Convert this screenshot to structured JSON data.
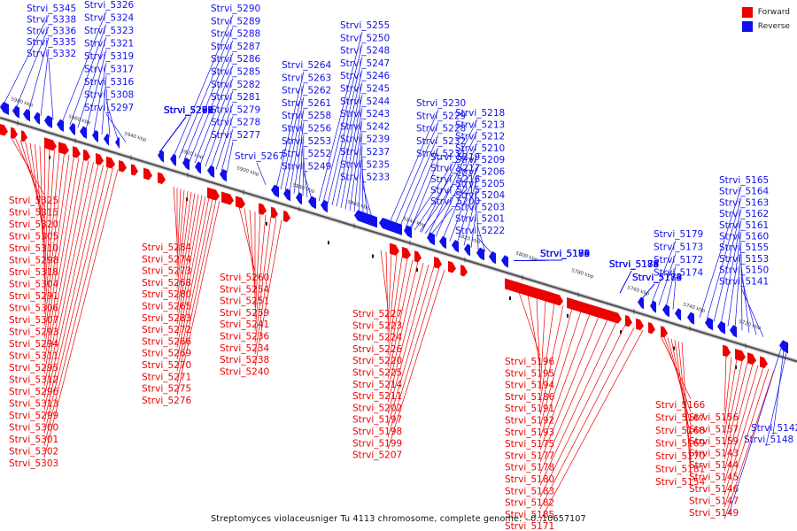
{
  "colors": {
    "forward": "#ee0000",
    "reverse": "#1010ee",
    "axis": "#555555"
  },
  "legend": [
    {
      "label": "Forward",
      "color": "#ee0000"
    },
    {
      "label": "Reverse",
      "color": "#1010ee"
    }
  ],
  "caption": "Streptomyces violaceusniger Tu 4113 chromosome, complete genome. - 0..10657107",
  "ticks": [
    "5980 kbp",
    "5960 kbp",
    "5940 kbp",
    "5920 kbp",
    "5900 kbp",
    "5880 kbp",
    "5860 kbp",
    "5840 kbp",
    "5820 kbp",
    "5800 kbp",
    "5780 kbp",
    "5760 kbp",
    "5740 kbp",
    "5720 kbp"
  ],
  "genes": {
    "top": [
      "Strvi_5345",
      "Strvi_5338",
      "Strvi_5336",
      "Strvi_5335",
      "Strvi_5332",
      "Strvi_5326",
      "Strvi_5324",
      "Strvi_5323",
      "Strvi_5321",
      "Strvi_5319",
      "Strvi_5317",
      "Strvi_5316",
      "Strvi_5308",
      "Strvi_5297",
      "Strvi_5292",
      "Strvi_5290",
      "Strvi_5289",
      "Strvi_5288",
      "Strvi_5287",
      "Strvi_5286",
      "Strvi_5285",
      "Strvi_5282",
      "Strvi_5281",
      "Strvi_5279",
      "Strvi_5278",
      "Strvi_5277",
      "Strvi_5267",
      "Strvi_5264",
      "Strvi_5263",
      "Strvi_5262",
      "Strvi_5261",
      "Strvi_5258",
      "Strvi_5256",
      "Strvi_5253",
      "Strvi_5252",
      "Strvi_5249",
      "Strvi_5255",
      "Strvi_5250",
      "Strvi_5248",
      "Strvi_5247",
      "Strvi_5246",
      "Strvi_5245",
      "Strvi_5244",
      "Strvi_5243",
      "Strvi_5242",
      "Strvi_5239",
      "Strvi_5237",
      "Strvi_5235",
      "Strvi_5233",
      "Strvi_5230",
      "Strvi_5229",
      "Strvi_5228",
      "Strvi_5232",
      "Strvi_5231",
      "Strvi_5218",
      "Strvi_5213",
      "Strvi_5212",
      "Strvi_5210",
      "Strvi_5209",
      "Strvi_5206",
      "Strvi_5205",
      "Strvi_5204",
      "Strvi_5203",
      "Strvi_5201",
      "Strvi_5222",
      "Strvi_5219",
      "Strvi_5217",
      "Strvi_5216",
      "Strvi_5215",
      "Strvi_5200",
      "Strvi_5190",
      "Strvi_5188",
      "Strvi_5184",
      "Strvi_5179",
      "Strvi_5173",
      "Strvi_5172",
      "Strvi_5174",
      "Strvi_5165",
      "Strvi_5164",
      "Strvi_5163",
      "Strvi_5162",
      "Strvi_5161",
      "Strvi_5160",
      "Strvi_5155",
      "Strvi_5153",
      "Strvi_5150",
      "Strvi_5141",
      "Strvi_5142",
      "Strvi_5148"
    ],
    "bottom": [
      "Strvi_5325",
      "Strvi_5315",
      "Strvi_5320",
      "Strvi_5305",
      "Strvi_5310",
      "Strvi_5298",
      "Strvi_5318",
      "Strvi_5304",
      "Strvi_5291",
      "Strvi_5306",
      "Strvi_5307",
      "Strvi_5293",
      "Strvi_5294",
      "Strvi_5311",
      "Strvi_5295",
      "Strvi_5312",
      "Strvi_5296",
      "Strvi_5313",
      "Strvi_5299",
      "Strvi_5300",
      "Strvi_5301",
      "Strvi_5302",
      "Strvi_5303",
      "Strvi_5284",
      "Strvi_5274",
      "Strvi_5273",
      "Strvi_5268",
      "Strvi_5280",
      "Strvi_5265",
      "Strvi_5283",
      "Strvi_5272",
      "Strvi_5266",
      "Strvi_5269",
      "Strvi_5270",
      "Strvi_5271",
      "Strvi_5275",
      "Strvi_5276",
      "Strvi_5260",
      "Strvi_5254",
      "Strvi_5251",
      "Strvi_5259",
      "Strvi_5241",
      "Strvi_5236",
      "Strvi_5234",
      "Strvi_5238",
      "Strvi_5240",
      "Strvi_5227",
      "Strvi_5223",
      "Strvi_5224",
      "Strvi_5226",
      "Strvi_5220",
      "Strvi_5225",
      "Strvi_5214",
      "Strvi_5211",
      "Strvi_5202",
      "Strvi_5197",
      "Strvi_5198",
      "Strvi_5199",
      "Strvi_5207",
      "Strvi_5196",
      "Strvi_5195",
      "Strvi_5194",
      "Strvi_5186",
      "Strvi_5191",
      "Strvi_5192",
      "Strvi_5193",
      "Strvi_5175",
      "Strvi_5177",
      "Strvi_5178",
      "Strvi_5180",
      "Strvi_5183",
      "Strvi_5182",
      "Strvi_5185",
      "Strvi_5171",
      "Strvi_5166",
      "Strvi_5167",
      "Strvi_5168",
      "Strvi_5169",
      "Strvi_5170",
      "Strvi_5181",
      "Strvi_5154",
      "Strvi_5156",
      "Strvi_5157",
      "Strvi_5159",
      "Strvi_5143",
      "Strvi_5144",
      "Strvi_5145",
      "Strvi_5146",
      "Strvi_5147",
      "Strvi_5149"
    ]
  }
}
